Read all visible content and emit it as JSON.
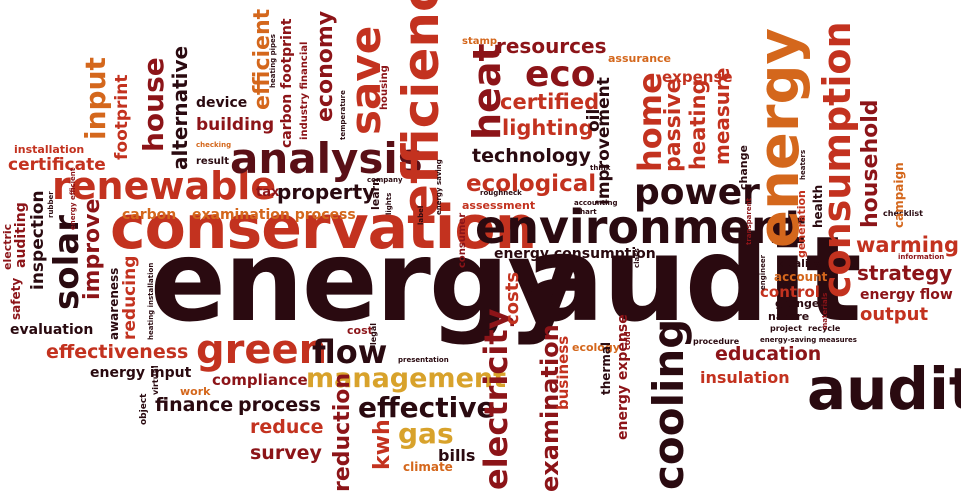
{
  "palette": {
    "dark": "#2a0a10",
    "deep_red": "#8c1418",
    "red": "#c3321f",
    "orange": "#d4671c",
    "gold": "#d8a22b",
    "wine": "#5a0f16"
  },
  "words": {
    "energy_main": "energy",
    "audit_main": "audit",
    "conservation": "conservation",
    "environment": "environment",
    "efficiency": "efficiency",
    "analysis": "analysis",
    "renewable": "renewable",
    "green": "green",
    "flow": "flow",
    "management": "management",
    "effective": "effective",
    "gas": "gas",
    "audit_right": "audit",
    "energy_right": "energy",
    "consumption": "consumption",
    "cooling": "cooling",
    "electricity": "electricity",
    "save": "save",
    "heat": "heat",
    "eco": "eco",
    "resources": "resources",
    "certified": "certified",
    "lighting": "lighting",
    "technology": "technology",
    "ecological": "ecological",
    "power": "power",
    "home": "home",
    "passive": "passive",
    "heating": "heating",
    "measure": "measure",
    "expense": "expense",
    "assurance": "assurance",
    "stamp": "stamp",
    "household": "household",
    "warming": "warming",
    "strategy": "strategy",
    "energy_flow": "energy flow",
    "output": "output",
    "control": "control",
    "grunge": "grunge",
    "nature": "nature",
    "quality": "quality",
    "account": "account",
    "education": "education",
    "insulation": "insulation",
    "effectiveness": "effectiveness",
    "evaluation": "evaluation",
    "energy_input": "energy input",
    "compliance": "compliance",
    "finance": "finance",
    "process": "process",
    "reduce": "reduce",
    "survey": "survey",
    "reduction": "reduction",
    "kwh": "kwh",
    "bills": "bills",
    "climate": "climate",
    "examination": "examination",
    "business": "business",
    "energy_expense": "energy expense",
    "thermal": "thermal",
    "ecology": "ecology",
    "costs": "costs",
    "energy_consumption": "energy consumption",
    "assessment": "assessment",
    "examination_process": "examination process",
    "property": "property",
    "carbon": "carbon",
    "building": "building",
    "device": "device",
    "efficient": "efficient",
    "carbon_footprint": "carbon footprint",
    "economy": "economy",
    "industry_financial": "industry financial",
    "alternative": "alternative",
    "house": "house",
    "input": "input",
    "footprint": "footprint",
    "certificate": "certificate",
    "installation": "installation",
    "solar": "solar",
    "inspection": "inspection",
    "improve": "improve",
    "reducing": "reducing",
    "awareness": "awareness",
    "auditing": "auditing",
    "safety": "safety",
    "electric": "electric",
    "improvement": "improvement",
    "oil": "oil",
    "tax": "tax",
    "result": "result",
    "checking": "checking",
    "housing": "housing",
    "generation": "generation",
    "health": "health",
    "campaign": "campaign",
    "change": "change",
    "cost": "cost",
    "work": "work",
    "object": "object",
    "virtual": "virtual",
    "project": "project",
    "recycle": "recycle",
    "procedure": "procedure",
    "learn": "learn",
    "legal": "legal",
    "presentation": "presentation",
    "consumer": "consumer",
    "roughneck": "roughneck",
    "think": "think",
    "accounting": "accounting",
    "chart": "chart",
    "company": "company",
    "cold": "cold",
    "checklist": "checklist",
    "information": "information",
    "materials": "materials",
    "heaters": "heaters",
    "transparent": "transparent",
    "temperature": "temperature",
    "energy_saving": "energy saving",
    "energy_efficient": "energy efficient",
    "heating_pipes": "heating pipes",
    "energy_saving_measures": "energy-saving measures",
    "heating_installation": "heating installation",
    "label": "label",
    "lights": "lights",
    "class": "class",
    "rubber": "rubber",
    "engineer": "engineer"
  }
}
